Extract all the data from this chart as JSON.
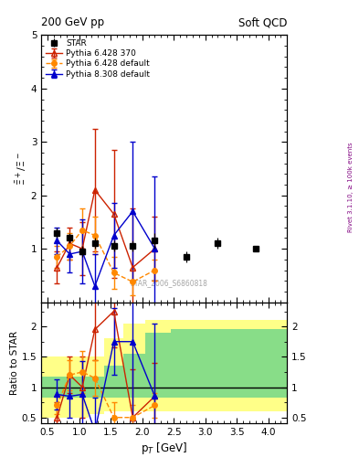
{
  "title_left": "200 GeV pp",
  "title_right": "Soft QCD",
  "ylabel_main": "$\\bar{\\Xi}^+ / \\Xi^-$",
  "ylabel_ratio": "Ratio to STAR",
  "xlabel": "p$_T$ [GeV]",
  "right_label": "Rivet 3.1.10, ≥ 100k events",
  "watermark": "STAR_2006_S6860818",
  "xlim": [
    0.4,
    4.3
  ],
  "ylim_main": [
    0,
    5
  ],
  "ylim_ratio": [
    0.4,
    2.4
  ],
  "star_x": [
    0.65,
    0.85,
    1.05,
    1.25,
    1.55,
    1.85,
    2.2,
    2.7,
    3.2,
    3.8
  ],
  "star_y": [
    1.3,
    1.2,
    0.95,
    1.1,
    1.05,
    1.05,
    1.15,
    0.85,
    1.1,
    1.0
  ],
  "star_yerr": [
    0.1,
    0.1,
    0.1,
    0.1,
    0.1,
    0.1,
    0.15,
    0.1,
    0.1,
    0.05
  ],
  "p6370_x": [
    0.65,
    0.85,
    1.05,
    1.25,
    1.55,
    1.85,
    2.2
  ],
  "p6370_y": [
    0.65,
    1.1,
    1.0,
    2.1,
    1.65,
    0.65,
    1.0
  ],
  "p6370_yerr": [
    0.3,
    0.3,
    0.5,
    1.15,
    1.2,
    1.1,
    0.6
  ],
  "p6370_color": "#cc2200",
  "p6def_x": [
    0.65,
    0.85,
    1.05,
    1.25,
    1.55,
    1.85,
    2.2
  ],
  "p6def_y": [
    0.85,
    1.05,
    1.35,
    1.25,
    0.55,
    0.38,
    0.6
  ],
  "p6def_yerr": [
    0.2,
    0.25,
    0.4,
    0.35,
    0.3,
    0.25,
    0.2
  ],
  "p6def_color": "#ff8800",
  "p8def_x": [
    0.65,
    0.85,
    1.05,
    1.25,
    1.55,
    1.85,
    2.2
  ],
  "p8def_y": [
    1.15,
    0.9,
    0.95,
    0.3,
    1.25,
    1.7,
    1.0
  ],
  "p8def_yerr": [
    0.25,
    0.35,
    0.6,
    0.6,
    0.6,
    1.3,
    1.35
  ],
  "p8def_color": "#0000cc",
  "ratio_p6370_x": [
    0.65,
    0.85,
    1.05,
    1.25,
    1.55,
    1.85,
    2.2
  ],
  "ratio_p6370_y": [
    0.5,
    1.2,
    1.0,
    1.95,
    2.25,
    0.5,
    0.85
  ],
  "ratio_p6370_yerr": [
    0.25,
    0.3,
    0.5,
    0.5,
    0.6,
    0.8,
    0.55
  ],
  "ratio_p6def_x": [
    0.65,
    0.85,
    1.05,
    1.25,
    1.55,
    1.85,
    2.2
  ],
  "ratio_p6def_y": [
    0.7,
    1.2,
    1.25,
    1.15,
    0.5,
    0.5,
    0.7
  ],
  "ratio_p6def_yerr": [
    0.15,
    0.25,
    0.35,
    0.3,
    0.25,
    0.2,
    0.2
  ],
  "ratio_p8def_x": [
    0.65,
    0.85,
    1.05,
    1.25,
    1.55,
    1.85,
    2.2
  ],
  "ratio_p8def_y": [
    0.88,
    0.85,
    0.88,
    0.27,
    1.75,
    1.75,
    0.85
  ],
  "ratio_p8def_yerr": [
    0.25,
    0.35,
    0.55,
    0.55,
    0.55,
    1.3,
    1.2
  ],
  "band_x": [
    0.4,
    0.75,
    0.95,
    1.15,
    1.4,
    1.7,
    2.05,
    2.45,
    2.95,
    3.45,
    4.3
  ],
  "band_green_lo": [
    0.82,
    0.82,
    0.82,
    0.82,
    0.82,
    0.82,
    0.82,
    0.82,
    0.82,
    0.82,
    0.82
  ],
  "band_green_hi": [
    1.18,
    1.18,
    1.18,
    1.18,
    1.35,
    1.55,
    1.9,
    1.95,
    1.95,
    1.95,
    1.95
  ],
  "band_yellow_lo": [
    0.5,
    0.5,
    0.5,
    0.55,
    0.6,
    0.6,
    0.6,
    0.6,
    0.6,
    0.6,
    0.6
  ],
  "band_yellow_hi": [
    1.5,
    1.5,
    1.5,
    1.5,
    1.8,
    2.05,
    2.1,
    2.1,
    2.1,
    2.1,
    2.1
  ]
}
